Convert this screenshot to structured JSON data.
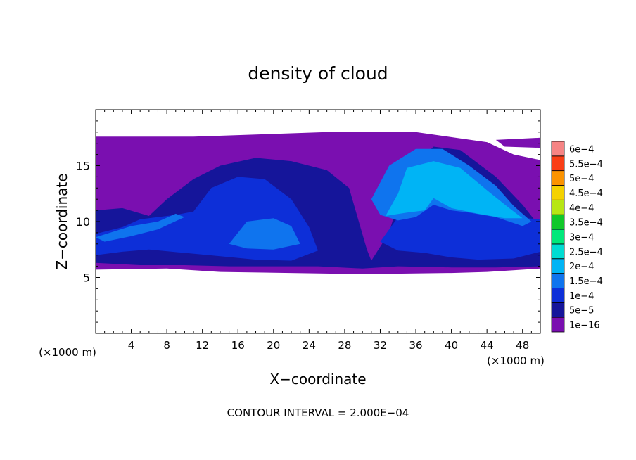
{
  "chart_data": {
    "type": "heatmap",
    "title": "density of cloud",
    "xlabel": "X−coordinate",
    "ylabel": "Z−coordinate",
    "x_unit_label": "(×1000 m)",
    "y_unit_label": "(×1000 m)",
    "footer": "CONTOUR INTERVAL = 2.000E−04",
    "xlim": [
      0,
      50
    ],
    "ylim": [
      0,
      20
    ],
    "x_ticks": [
      4,
      8,
      12,
      16,
      20,
      24,
      28,
      32,
      36,
      40,
      44,
      48
    ],
    "x_tick_labels": [
      "4",
      "8",
      "12",
      "16",
      "20",
      "24",
      "28",
      "32",
      "36",
      "40",
      "44",
      "48"
    ],
    "y_ticks": [
      5,
      10,
      15
    ],
    "y_tick_labels": [
      "5",
      "10",
      "15"
    ],
    "colorbar": {
      "levels": [
        1e-16,
        5e-05,
        0.0001,
        0.00015,
        0.0002,
        0.00025,
        0.0003,
        0.00035,
        0.0004,
        0.00045,
        0.0005,
        0.00055,
        0.0006
      ],
      "labels": [
        "1e−16",
        "5e−5",
        "1e−4",
        "1.5e−4",
        "2e−4",
        "2.5e−4",
        "3e−4",
        "3.5e−4",
        "4e−4",
        "4.5e−4",
        "5e−4",
        "5.5e−4",
        "6e−4"
      ],
      "colors": [
        "#7a0fb0",
        "#15159a",
        "#0d2fd8",
        "#0f74ee",
        "#00b4f5",
        "#00dcd2",
        "#00e87a",
        "#10c82a",
        "#b7e614",
        "#f4d200",
        "#fb9300",
        "#f93e16",
        "#f68484"
      ]
    },
    "regions": [
      {
        "level": 0,
        "points": [
          [
            0,
            17.6
          ],
          [
            11,
            17.6
          ],
          [
            26,
            18
          ],
          [
            36,
            18
          ],
          [
            44,
            17.1
          ],
          [
            47,
            16
          ],
          [
            50,
            15.5
          ],
          [
            50,
            5.8
          ],
          [
            44,
            5.5
          ],
          [
            40,
            5.4
          ],
          [
            30,
            5.3
          ],
          [
            14,
            5.5
          ],
          [
            8,
            5.8
          ],
          [
            0,
            5.7
          ]
        ]
      },
      {
        "level": 0,
        "points": [
          [
            45,
            17.3
          ],
          [
            50,
            17.5
          ],
          [
            50,
            16.6
          ],
          [
            46,
            16.7
          ]
        ]
      },
      {
        "level": 1,
        "points": [
          [
            0,
            11
          ],
          [
            3,
            11.2
          ],
          [
            6,
            10.5
          ],
          [
            8,
            12
          ],
          [
            11,
            13.8
          ],
          [
            14,
            15
          ],
          [
            18,
            15.7
          ],
          [
            22,
            15.4
          ],
          [
            26,
            14.6
          ],
          [
            28.5,
            13
          ],
          [
            30.5,
            7.5
          ],
          [
            31,
            6.5
          ],
          [
            33,
            9
          ],
          [
            35,
            14.5
          ],
          [
            38,
            16.7
          ],
          [
            41,
            16.4
          ],
          [
            45,
            14
          ],
          [
            48,
            11.5
          ],
          [
            50,
            9.5
          ],
          [
            50,
            6
          ],
          [
            45,
            5.9
          ],
          [
            40,
            5.9
          ],
          [
            34,
            6
          ],
          [
            30,
            5.8
          ],
          [
            25,
            6
          ],
          [
            20,
            6
          ],
          [
            15,
            6
          ],
          [
            10,
            6.1
          ],
          [
            5,
            6.1
          ],
          [
            0,
            6.3
          ]
        ]
      },
      {
        "level": 2,
        "points": [
          [
            0,
            8.9
          ],
          [
            3,
            9.5
          ],
          [
            5,
            10.2
          ],
          [
            9,
            10.6
          ],
          [
            11,
            10.9
          ],
          [
            13,
            13
          ],
          [
            16,
            14
          ],
          [
            19,
            13.8
          ],
          [
            22,
            12
          ],
          [
            24,
            9.5
          ],
          [
            25,
            7.4
          ],
          [
            22,
            6.5
          ],
          [
            18,
            6.6
          ],
          [
            14,
            6.9
          ],
          [
            10,
            7.2
          ],
          [
            6,
            7.5
          ],
          [
            3,
            7.3
          ],
          [
            0,
            7
          ]
        ]
      },
      {
        "level": 2,
        "points": [
          [
            32,
            8.2
          ],
          [
            34,
            10.4
          ],
          [
            36,
            13
          ],
          [
            38,
            13
          ],
          [
            40,
            12
          ],
          [
            42,
            11.2
          ],
          [
            44,
            10.8
          ],
          [
            47,
            10.4
          ],
          [
            50,
            10.2
          ],
          [
            50,
            7.3
          ],
          [
            47,
            6.7
          ],
          [
            43,
            6.6
          ],
          [
            40,
            6.8
          ],
          [
            37,
            7.2
          ],
          [
            34,
            7.4
          ]
        ]
      },
      {
        "level": 3,
        "points": [
          [
            15,
            8
          ],
          [
            17,
            10
          ],
          [
            20,
            10.3
          ],
          [
            22,
            9.6
          ],
          [
            23,
            8
          ],
          [
            20,
            7.5
          ],
          [
            17,
            7.6
          ]
        ]
      },
      {
        "level": 3,
        "points": [
          [
            0,
            8.6
          ],
          [
            4,
            9.6
          ],
          [
            7,
            10
          ],
          [
            9,
            10.7
          ],
          [
            10,
            10.4
          ],
          [
            7,
            9.3
          ],
          [
            4,
            8.7
          ],
          [
            1,
            8.2
          ]
        ]
      },
      {
        "level": 3,
        "points": [
          [
            31,
            12
          ],
          [
            33,
            15
          ],
          [
            36,
            16.5
          ],
          [
            39,
            16.5
          ],
          [
            42,
            15
          ],
          [
            45,
            13.2
          ],
          [
            47,
            11.4
          ],
          [
            49,
            10
          ],
          [
            48,
            9.6
          ],
          [
            45,
            10.4
          ],
          [
            42,
            10.8
          ],
          [
            40,
            11
          ],
          [
            38,
            11.5
          ],
          [
            36,
            10.4
          ],
          [
            34,
            10.1
          ],
          [
            32,
            10.6
          ]
        ]
      },
      {
        "level": 4,
        "points": [
          [
            32.6,
            10.5
          ],
          [
            34,
            12.5
          ],
          [
            35,
            14.8
          ],
          [
            38,
            15.4
          ],
          [
            41,
            14.8
          ],
          [
            44,
            12.8
          ],
          [
            46.5,
            11.2
          ],
          [
            48,
            10.3
          ],
          [
            46,
            10.3
          ],
          [
            43,
            10.7
          ],
          [
            40,
            11.2
          ],
          [
            38,
            12.1
          ],
          [
            37,
            11
          ],
          [
            35,
            10.8
          ]
        ]
      }
    ]
  }
}
